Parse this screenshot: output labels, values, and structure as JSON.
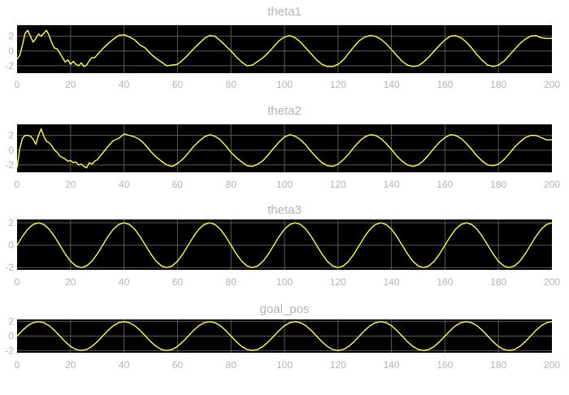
{
  "chart_data": [
    {
      "type": "line",
      "title": "theta1",
      "xlabel": "",
      "ylabel": "",
      "xlim": [
        0,
        200
      ],
      "ylim": [
        -3,
        3.5
      ],
      "xticks": [
        0,
        20,
        40,
        60,
        80,
        100,
        120,
        140,
        160,
        180,
        200
      ],
      "yticks": [
        -2,
        0,
        2
      ],
      "grid": true,
      "background": "#000000",
      "grid_color": "#5a5a5a",
      "line_color": "#ffff64",
      "series": [
        {
          "x": [
            0,
            1,
            2,
            3,
            4,
            5,
            6,
            7,
            8,
            9,
            10,
            11,
            12,
            13,
            14,
            15,
            16,
            17,
            18,
            19,
            20,
            21,
            22,
            23,
            24,
            25,
            26,
            27,
            28,
            29,
            30,
            32,
            34,
            36,
            38,
            40,
            42,
            44,
            46,
            48,
            50,
            52,
            54,
            56,
            58,
            60,
            62,
            64,
            66,
            68,
            70,
            72,
            74,
            76,
            78,
            80,
            82,
            84,
            86,
            88,
            90,
            92,
            94,
            96,
            98,
            100,
            102,
            104,
            106,
            108,
            110,
            112,
            114,
            116,
            118,
            120,
            122,
            124,
            126,
            128,
            130,
            132,
            134,
            136,
            138,
            140,
            142,
            144,
            146,
            148,
            150,
            152,
            154,
            156,
            158,
            160,
            162,
            164,
            166,
            168,
            170,
            172,
            174,
            176,
            178,
            180,
            182,
            184,
            186,
            188,
            190,
            192,
            194,
            196,
            198,
            200
          ],
          "y": [
            -1.1,
            -0.6,
            0.8,
            2.4,
            2.8,
            2.0,
            1.2,
            1.7,
            2.3,
            2.0,
            2.4,
            2.8,
            2.1,
            1.1,
            0.4,
            0.3,
            -0.3,
            -0.9,
            -1.5,
            -1.2,
            -1.8,
            -1.4,
            -1.8,
            -2.0,
            -1.6,
            -2.1,
            -1.9,
            -1.3,
            -0.9,
            -0.9,
            -0.5,
            0.3,
            1.0,
            1.6,
            2.1,
            2.2,
            1.9,
            1.5,
            0.8,
            0.4,
            -0.4,
            -1.0,
            -1.5,
            -2.0,
            -1.9,
            -1.8,
            -1.2,
            -0.5,
            0.3,
            1.0,
            1.7,
            2.1,
            2.0,
            1.4,
            0.7,
            0.0,
            -0.8,
            -1.5,
            -2.0,
            -1.9,
            -1.4,
            -0.9,
            -0.2,
            0.6,
            1.4,
            1.9,
            2.1,
            1.8,
            1.2,
            0.4,
            -0.4,
            -1.2,
            -1.8,
            -2.1,
            -2.1,
            -1.8,
            -1.2,
            -0.3,
            0.6,
            1.4,
            1.9,
            2.1,
            2.0,
            1.6,
            1.0,
            0.2,
            -0.6,
            -1.4,
            -1.9,
            -2.1,
            -2.0,
            -1.5,
            -0.8,
            0.0,
            0.8,
            1.5,
            2.0,
            2.1,
            1.8,
            1.2,
            0.4,
            -0.5,
            -1.3,
            -1.9,
            -2.1,
            -1.9,
            -1.4,
            -0.6,
            0.2,
            1.0,
            1.6,
            2.0,
            2.1,
            1.8,
            1.7,
            1.7
          ]
        }
      ]
    },
    {
      "type": "line",
      "title": "theta2",
      "xlabel": "",
      "ylabel": "",
      "xlim": [
        0,
        200
      ],
      "ylim": [
        -3,
        3.5
      ],
      "xticks": [
        0,
        20,
        40,
        60,
        80,
        100,
        120,
        140,
        160,
        180,
        200
      ],
      "yticks": [
        -2,
        0,
        2
      ],
      "grid": true,
      "background": "#000000",
      "grid_color": "#5a5a5a",
      "line_color": "#ffff64",
      "series": [
        {
          "x": [
            0,
            1,
            2,
            3,
            4,
            5,
            6,
            7,
            8,
            9,
            10,
            11,
            12,
            13,
            14,
            15,
            16,
            17,
            18,
            19,
            20,
            21,
            22,
            23,
            24,
            25,
            26,
            27,
            28,
            29,
            30,
            32,
            34,
            36,
            38,
            40,
            42,
            44,
            46,
            48,
            50,
            52,
            54,
            56,
            58,
            60,
            62,
            64,
            66,
            68,
            70,
            72,
            74,
            76,
            78,
            80,
            82,
            84,
            86,
            88,
            90,
            92,
            94,
            96,
            98,
            100,
            102,
            104,
            106,
            108,
            110,
            112,
            114,
            116,
            118,
            120,
            122,
            124,
            126,
            128,
            130,
            132,
            134,
            136,
            138,
            140,
            142,
            144,
            146,
            148,
            150,
            152,
            154,
            156,
            158,
            160,
            162,
            164,
            166,
            168,
            170,
            172,
            174,
            176,
            178,
            180,
            182,
            184,
            186,
            188,
            190,
            192,
            194,
            196,
            198,
            200
          ],
          "y": [
            -2.4,
            0.2,
            1.6,
            2.0,
            2.0,
            1.9,
            1.5,
            0.8,
            2.0,
            2.9,
            1.9,
            1.2,
            1.0,
            0.6,
            0.0,
            -0.3,
            -0.8,
            -1.0,
            -1.2,
            -1.5,
            -1.4,
            -1.7,
            -1.6,
            -2.0,
            -1.9,
            -2.2,
            -2.4,
            -1.7,
            -1.9,
            -1.5,
            -1.3,
            -0.4,
            0.5,
            1.3,
            1.6,
            2.2,
            2.0,
            1.8,
            1.4,
            0.7,
            -0.2,
            -0.9,
            -1.5,
            -2.0,
            -2.2,
            -1.8,
            -1.2,
            -0.4,
            0.5,
            1.2,
            1.8,
            2.1,
            1.9,
            1.4,
            0.6,
            -0.3,
            -1.0,
            -1.6,
            -2.1,
            -2.2,
            -1.9,
            -1.4,
            -0.6,
            0.3,
            1.1,
            1.8,
            2.1,
            1.9,
            1.4,
            0.7,
            -0.2,
            -1.0,
            -1.7,
            -2.1,
            -2.2,
            -1.9,
            -1.3,
            -0.5,
            0.4,
            1.2,
            1.8,
            2.1,
            2.0,
            1.6,
            0.9,
            0.1,
            -0.8,
            -1.5,
            -2.0,
            -2.2,
            -2.0,
            -1.4,
            -0.6,
            0.3,
            1.1,
            1.7,
            2.1,
            2.0,
            1.6,
            0.9,
            0.1,
            -0.8,
            -1.5,
            -2.0,
            -2.1,
            -1.9,
            -1.3,
            -0.5,
            0.4,
            1.1,
            1.7,
            2.0,
            2.0,
            1.7,
            1.4,
            1.4
          ]
        }
      ]
    },
    {
      "type": "line",
      "title": "theta3",
      "xlabel": "",
      "ylabel": "",
      "xlim": [
        0,
        200
      ],
      "ylim": [
        -2.2,
        2.3
      ],
      "xticks": [
        0,
        20,
        40,
        60,
        80,
        100,
        120,
        140,
        160,
        180,
        200
      ],
      "yticks": [
        -2,
        0,
        2
      ],
      "grid": true,
      "background": "#000000",
      "grid_color": "#5a5a5a",
      "line_color": "#ffff64",
      "series": [
        {
          "x": [
            0,
            2,
            4,
            6,
            8,
            10,
            12,
            14,
            16,
            18,
            20,
            22,
            24,
            26,
            28,
            30,
            32,
            34,
            36,
            38,
            40,
            42,
            44,
            46,
            48,
            50,
            52,
            54,
            56,
            58,
            60,
            62,
            64,
            66,
            68,
            70,
            72,
            74,
            76,
            78,
            80,
            82,
            84,
            86,
            88,
            90,
            92,
            94,
            96,
            98,
            100,
            102,
            104,
            106,
            108,
            110,
            112,
            114,
            116,
            118,
            120,
            122,
            124,
            126,
            128,
            130,
            132,
            134,
            136,
            138,
            140,
            142,
            144,
            146,
            148,
            150,
            152,
            154,
            156,
            158,
            160,
            162,
            164,
            166,
            168,
            170,
            172,
            174,
            176,
            178,
            180,
            182,
            184,
            186,
            188,
            190,
            192,
            194,
            196,
            198,
            200
          ],
          "y": [
            0.0,
            0.78,
            1.43,
            1.85,
            2.0,
            1.85,
            1.43,
            0.78,
            0.0,
            -0.78,
            -1.43,
            -1.85,
            -2.0,
            -1.85,
            -1.43,
            -0.78,
            0.0,
            0.78,
            1.43,
            1.85,
            2.0,
            1.85,
            1.43,
            0.78,
            0.0,
            -0.78,
            -1.43,
            -1.85,
            -2.0,
            -1.85,
            -1.43,
            -0.78,
            0.0,
            0.78,
            1.43,
            1.85,
            2.0,
            1.85,
            1.43,
            0.78,
            0.0,
            -0.78,
            -1.43,
            -1.85,
            -2.0,
            -1.85,
            -1.43,
            -0.78,
            0.0,
            0.78,
            1.43,
            1.85,
            2.0,
            1.85,
            1.43,
            0.78,
            0.0,
            -0.78,
            -1.43,
            -1.85,
            -2.0,
            -1.85,
            -1.43,
            -0.78,
            0.0,
            0.78,
            1.43,
            1.85,
            2.0,
            1.85,
            1.43,
            0.78,
            0.0,
            -0.78,
            -1.43,
            -1.85,
            -2.0,
            -1.85,
            -1.43,
            -0.78,
            0.0,
            0.78,
            1.43,
            1.85,
            2.0,
            1.85,
            1.43,
            0.78,
            0.0,
            -0.78,
            -1.43,
            -1.85,
            -2.0,
            -1.85,
            -1.43,
            -0.78,
            0.0,
            0.78,
            1.43,
            1.85,
            2.0
          ]
        }
      ]
    },
    {
      "type": "line",
      "title": "goal_pos",
      "xlabel": "",
      "ylabel": "",
      "xlim": [
        0,
        200
      ],
      "ylim": [
        -2.3,
        2.3
      ],
      "xticks": [
        0,
        20,
        40,
        60,
        80,
        100,
        120,
        140,
        160,
        180,
        200
      ],
      "yticks": [
        -2,
        0,
        2
      ],
      "grid": true,
      "background": "#000000",
      "grid_color": "#5a5a5a",
      "line_color": "#ffff64",
      "series": [
        {
          "x": [
            0,
            2,
            4,
            6,
            8,
            10,
            12,
            14,
            16,
            18,
            20,
            22,
            24,
            26,
            28,
            30,
            32,
            34,
            36,
            38,
            40,
            42,
            44,
            46,
            48,
            50,
            52,
            54,
            56,
            58,
            60,
            62,
            64,
            66,
            68,
            70,
            72,
            74,
            76,
            78,
            80,
            82,
            84,
            86,
            88,
            90,
            92,
            94,
            96,
            98,
            100,
            102,
            104,
            106,
            108,
            110,
            112,
            114,
            116,
            118,
            120,
            122,
            124,
            126,
            128,
            130,
            132,
            134,
            136,
            138,
            140,
            142,
            144,
            146,
            148,
            150,
            152,
            154,
            156,
            158,
            160,
            162,
            164,
            166,
            168,
            170,
            172,
            174,
            176,
            178,
            180,
            182,
            184,
            186,
            188,
            190,
            192,
            194,
            196,
            198,
            200
          ],
          "y": [
            0.0,
            0.78,
            1.43,
            1.85,
            2.0,
            1.85,
            1.43,
            0.78,
            0.0,
            -0.78,
            -1.43,
            -1.85,
            -2.0,
            -1.85,
            -1.43,
            -0.78,
            0.0,
            0.78,
            1.43,
            1.85,
            2.0,
            1.85,
            1.43,
            0.78,
            0.0,
            -0.78,
            -1.43,
            -1.85,
            -2.0,
            -1.85,
            -1.43,
            -0.78,
            0.0,
            0.78,
            1.43,
            1.85,
            2.0,
            1.85,
            1.43,
            0.78,
            0.0,
            -0.78,
            -1.43,
            -1.85,
            -2.0,
            -1.85,
            -1.43,
            -0.78,
            0.0,
            0.78,
            1.43,
            1.85,
            2.0,
            1.85,
            1.43,
            0.78,
            0.0,
            -0.78,
            -1.43,
            -1.85,
            -2.0,
            -1.85,
            -1.43,
            -0.78,
            0.0,
            0.78,
            1.43,
            1.85,
            2.0,
            1.85,
            1.43,
            0.78,
            0.0,
            -0.78,
            -1.43,
            -1.85,
            -2.0,
            -1.85,
            -1.43,
            -0.78,
            0.0,
            0.78,
            1.43,
            1.85,
            2.0,
            1.85,
            1.43,
            0.78,
            0.0,
            -0.78,
            -1.43,
            -1.85,
            -2.0,
            -1.85,
            -1.43,
            -0.78,
            0.0,
            0.78,
            1.43,
            1.85,
            2.0
          ]
        }
      ]
    }
  ]
}
